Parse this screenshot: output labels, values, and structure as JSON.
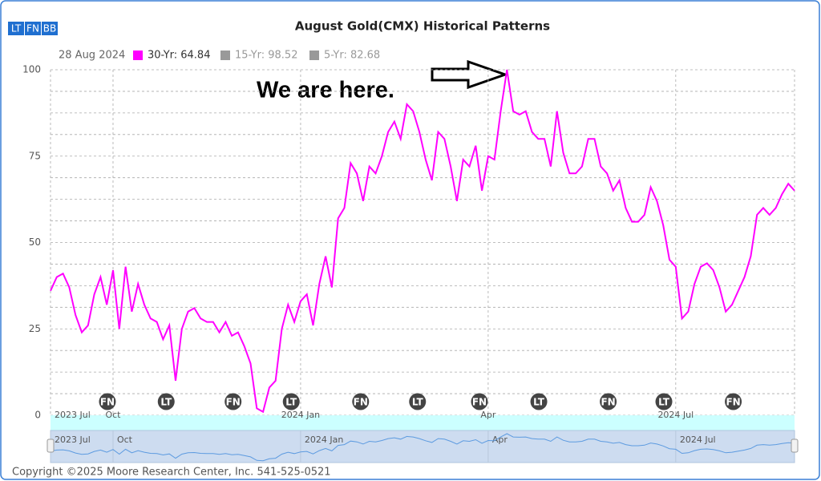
{
  "toolbar": [
    "LT",
    "FN",
    "BB"
  ],
  "chart_data": {
    "type": "line",
    "title": "August Gold(CMX) Historical Patterns",
    "legend": {
      "date": "28 Aug 2024",
      "items": [
        {
          "label": "30-Yr: 64.84",
          "color": "#ff00ff",
          "active": true
        },
        {
          "label": "15-Yr: 98.52",
          "color": "#999999",
          "active": false
        },
        {
          "label": "5-Yr: 82.68",
          "color": "#999999",
          "active": false
        }
      ]
    },
    "annotation": "We are here.",
    "categories": [
      "2023 Jul",
      null,
      null,
      null,
      null,
      null,
      null,
      null,
      null,
      null,
      "Oct",
      null,
      null,
      null,
      null,
      null,
      null,
      null,
      null,
      null,
      null,
      null,
      null,
      null,
      null,
      null,
      null,
      null,
      null,
      null,
      null,
      null,
      null,
      null,
      null,
      null,
      null,
      null,
      null,
      null,
      "2024 Jan",
      null,
      null,
      null,
      null,
      null,
      null,
      null,
      null,
      null,
      null,
      null,
      null,
      null,
      null,
      null,
      null,
      null,
      null,
      null,
      null,
      null,
      null,
      null,
      null,
      null,
      null,
      null,
      null,
      null,
      "Apr",
      null,
      null,
      null,
      null,
      null,
      null,
      null,
      null,
      null,
      null,
      null,
      null,
      null,
      null,
      null,
      null,
      null,
      null,
      null,
      null,
      null,
      null,
      null,
      null,
      null,
      null,
      null,
      null,
      null,
      "2024 Jul",
      null,
      null,
      null,
      null,
      null,
      null,
      null,
      null,
      null,
      null,
      null,
      null,
      null,
      null,
      null,
      null,
      null,
      null,
      null
    ],
    "series": [
      {
        "name": "30-Yr",
        "color": "#ff00ff",
        "values": [
          36,
          40,
          41,
          37,
          29,
          24,
          26,
          35,
          40,
          32,
          42,
          25,
          43,
          30,
          38,
          32,
          28,
          27,
          22,
          26,
          10,
          25,
          30,
          31,
          28,
          27,
          27,
          24,
          27,
          23,
          24,
          20,
          15,
          2,
          1,
          8,
          10,
          25,
          32,
          27,
          33,
          35,
          26,
          38,
          46,
          37,
          57,
          60,
          73,
          70,
          62,
          72,
          70,
          75,
          82,
          85,
          80,
          90,
          88,
          82,
          74,
          68,
          82,
          80,
          72,
          62,
          74,
          72,
          78,
          65,
          75,
          74,
          88,
          100,
          88,
          87,
          88,
          82,
          80,
          80,
          72,
          88,
          76,
          70,
          70,
          72,
          80,
          80,
          72,
          70,
          65,
          68,
          60,
          56,
          56,
          58,
          66,
          62,
          55,
          45,
          43,
          28,
          30,
          38,
          43,
          44,
          42,
          37,
          30,
          32,
          36,
          40,
          46,
          58,
          60,
          58,
          60,
          64,
          67,
          65
        ]
      }
    ],
    "markers": [
      {
        "label": "FN",
        "x": 9.1
      },
      {
        "label": "LT",
        "x": 18.5
      },
      {
        "label": "FN",
        "x": 29.2
      },
      {
        "label": "LT",
        "x": 38.5
      },
      {
        "label": "FN",
        "x": 49.6
      },
      {
        "label": "LT",
        "x": 58.7
      },
      {
        "label": "FN",
        "x": 68.6
      },
      {
        "label": "LT",
        "x": 78.1
      },
      {
        "label": "FN",
        "x": 89.2
      },
      {
        "label": "LT",
        "x": 98.1
      },
      {
        "label": "FN",
        "x": 109.2
      }
    ],
    "ylim": [
      0,
      100
    ],
    "yticks": [
      0,
      25,
      50,
      75,
      100
    ],
    "grid": true,
    "footer": "Copyright ©2025 Moore Research Center, Inc. 541-525-0521"
  }
}
